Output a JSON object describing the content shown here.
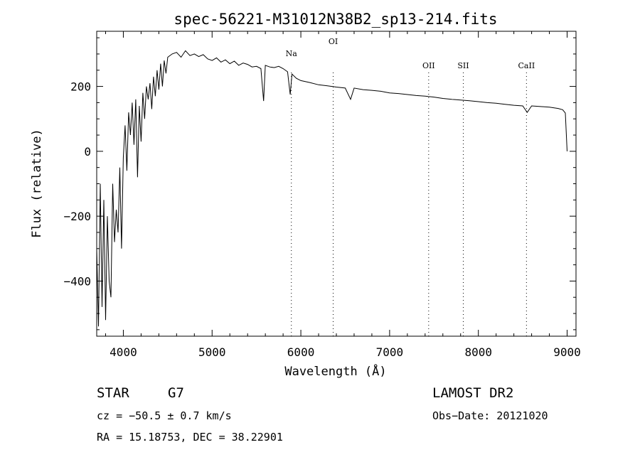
{
  "chart_data": {
    "type": "line",
    "title": "spec-56221-M31012N38B2_sp13-214.fits",
    "xlabel": "Wavelength (Å)",
    "ylabel": "Flux (relative)",
    "xlim": [
      3700,
      9100
    ],
    "ylim": [
      -570,
      370
    ],
    "x_ticks": [
      4000,
      5000,
      6000,
      7000,
      8000,
      9000
    ],
    "y_ticks": [
      -400,
      -200,
      0,
      200
    ],
    "grid": false,
    "series": [
      {
        "x": [
          3700,
          3720,
          3740,
          3760,
          3780,
          3800,
          3820,
          3840,
          3860,
          3880,
          3900,
          3920,
          3940,
          3960,
          3980,
          4000,
          4020,
          4040,
          4060,
          4080,
          4100,
          4120,
          4140,
          4160,
          4180,
          4200,
          4220,
          4240,
          4260,
          4280,
          4300,
          4320,
          4340,
          4360,
          4380,
          4400,
          4420,
          4440,
          4460,
          4480,
          4500,
          4550,
          4600,
          4650,
          4700,
          4750,
          4800,
          4850,
          4900,
          4950,
          5000,
          5050,
          5100,
          5150,
          5200,
          5250,
          5300,
          5350,
          5400,
          5450,
          5500,
          5550,
          5580,
          5600,
          5650,
          5700,
          5750,
          5800,
          5850,
          5880,
          5900,
          5950,
          6000,
          6100,
          6200,
          6300,
          6400,
          6500,
          6560,
          6600,
          6700,
          6800,
          6900,
          7000,
          7100,
          7200,
          7300,
          7400,
          7500,
          7600,
          7700,
          7800,
          7900,
          8000,
          8100,
          8200,
          8300,
          8400,
          8500,
          8550,
          8600,
          8700,
          8800,
          8900,
          8950,
          8980,
          9000
        ],
        "y": [
          -300,
          -540,
          -100,
          -480,
          -150,
          -520,
          -200,
          -400,
          -450,
          -100,
          -280,
          -180,
          -250,
          -50,
          -300,
          -20,
          80,
          -60,
          120,
          50,
          150,
          20,
          160,
          -80,
          140,
          30,
          180,
          100,
          200,
          160,
          210,
          130,
          230,
          170,
          250,
          190,
          270,
          200,
          280,
          240,
          290,
          300,
          305,
          290,
          310,
          295,
          300,
          292,
          298,
          285,
          280,
          288,
          275,
          282,
          270,
          278,
          265,
          272,
          268,
          260,
          262,
          255,
          155,
          265,
          260,
          258,
          262,
          255,
          245,
          175,
          238,
          225,
          218,
          212,
          205,
          202,
          198,
          195,
          160,
          195,
          190,
          188,
          185,
          180,
          178,
          175,
          172,
          170,
          167,
          163,
          160,
          158,
          156,
          153,
          150,
          148,
          145,
          142,
          140,
          120,
          140,
          138,
          136,
          132,
          128,
          118,
          0
        ]
      }
    ],
    "line_markers": [
      {
        "label": "Na",
        "x": 5893
      },
      {
        "label": "OI",
        "x": 6364
      },
      {
        "label": "OII",
        "x": 7440
      },
      {
        "label": "SII",
        "x": 7830
      },
      {
        "label": "CaII",
        "x": 8542
      }
    ],
    "annotations": {
      "object_type": "STAR",
      "subclass": "G7",
      "survey": "LAMOST DR2",
      "cz": "cz = −50.5 ± 0.7 km/s",
      "obs_date": "Obs−Date: 20121020",
      "coords": "RA =  15.18753, DEC =  38.22901"
    }
  }
}
